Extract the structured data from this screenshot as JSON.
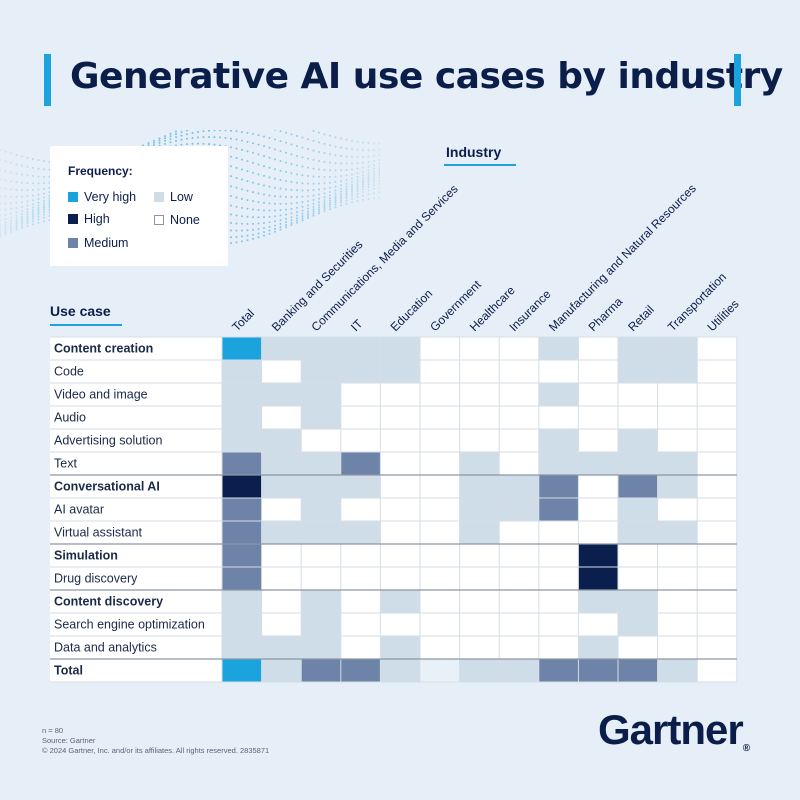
{
  "title": "Generative AI use cases by industry",
  "legend": {
    "title": "Frequency:",
    "items": [
      {
        "label": "Very high",
        "level": 4,
        "color": "#1aa3dc"
      },
      {
        "label": "High",
        "level": 3,
        "color": "#0b1f4f"
      },
      {
        "label": "Medium",
        "level": 2,
        "color": "#6e83a8"
      },
      {
        "label": "Low",
        "level": 1,
        "color": "#cfdde9"
      },
      {
        "label": "None",
        "level": 0,
        "color": "#ffffff"
      }
    ]
  },
  "chart_data": {
    "type": "heatmap",
    "x_axis_title": "Industry",
    "y_axis_title": "Use case",
    "columns": [
      "Total",
      "Banking and Securities",
      "Communications, Media and Services",
      "IT",
      "Education",
      "Government",
      "Healthcare",
      "Insurance",
      "Manufacturing and Natural Resources",
      "Pharma",
      "Retail",
      "Transportation",
      "Utilities"
    ],
    "rows": [
      {
        "label": "Content creation",
        "bold": true,
        "values": [
          4,
          1,
          1,
          1,
          1,
          0,
          0,
          0,
          1,
          0,
          1,
          1,
          0
        ]
      },
      {
        "label": "Code",
        "bold": false,
        "values": [
          1,
          0,
          1,
          1,
          1,
          0,
          0,
          0,
          0,
          0,
          1,
          1,
          0
        ]
      },
      {
        "label": "Video and image",
        "bold": false,
        "values": [
          1,
          1,
          1,
          0,
          0,
          0,
          0,
          0,
          1,
          0,
          0,
          0,
          0
        ]
      },
      {
        "label": "Audio",
        "bold": false,
        "values": [
          1,
          0,
          1,
          0,
          0,
          0,
          0,
          0,
          0,
          0,
          0,
          0,
          0
        ]
      },
      {
        "label": "Advertising solution",
        "bold": false,
        "values": [
          1,
          1,
          0,
          0,
          0,
          0,
          0,
          0,
          1,
          0,
          1,
          0,
          0
        ]
      },
      {
        "label": "Text",
        "bold": false,
        "values": [
          2,
          1,
          1,
          2,
          0,
          0,
          1,
          0,
          1,
          1,
          1,
          1,
          0
        ]
      },
      {
        "label": "Conversational AI",
        "bold": true,
        "values": [
          3,
          1,
          1,
          1,
          0,
          0,
          1,
          1,
          2,
          0,
          2,
          1,
          0
        ]
      },
      {
        "label": "AI avatar",
        "bold": false,
        "values": [
          2,
          0,
          1,
          0,
          0,
          0,
          1,
          1,
          2,
          0,
          1,
          0,
          0
        ]
      },
      {
        "label": "Virtual assistant",
        "bold": false,
        "values": [
          2,
          1,
          1,
          1,
          0,
          0,
          1,
          0,
          0,
          0,
          1,
          1,
          0
        ]
      },
      {
        "label": "Simulation",
        "bold": true,
        "values": [
          2,
          0,
          0,
          0,
          0,
          0,
          0,
          0,
          0,
          3,
          0,
          0,
          0
        ]
      },
      {
        "label": "Drug discovery",
        "bold": false,
        "values": [
          2,
          0,
          0,
          0,
          0,
          0,
          0,
          0,
          0,
          3,
          0,
          0,
          0
        ]
      },
      {
        "label": "Content discovery",
        "bold": true,
        "values": [
          1,
          0,
          1,
          0,
          1,
          0,
          0,
          0,
          0,
          1,
          1,
          0,
          0
        ]
      },
      {
        "label": "Search engine optimization",
        "bold": false,
        "values": [
          1,
          0,
          1,
          0,
          0,
          0,
          0,
          0,
          0,
          0,
          1,
          0,
          0
        ]
      },
      {
        "label": "Data and analytics",
        "bold": false,
        "values": [
          1,
          1,
          1,
          0,
          1,
          0,
          0,
          0,
          0,
          1,
          0,
          0,
          0
        ]
      },
      {
        "label": "Total",
        "bold": true,
        "values": [
          4,
          1,
          2,
          2,
          1,
          0.5,
          1,
          1,
          2,
          2,
          2,
          1,
          0
        ]
      }
    ],
    "section_breaks_after_rows": [
      5,
      8,
      10,
      13
    ]
  },
  "footnote": {
    "n": "n = 80",
    "source": "Source: Gartner",
    "copyright": "© 2024 Gartner, Inc. and/or its affiliates. All rights reserved. 2835871"
  },
  "brand": {
    "name": "Gartner",
    "mark": "®"
  }
}
